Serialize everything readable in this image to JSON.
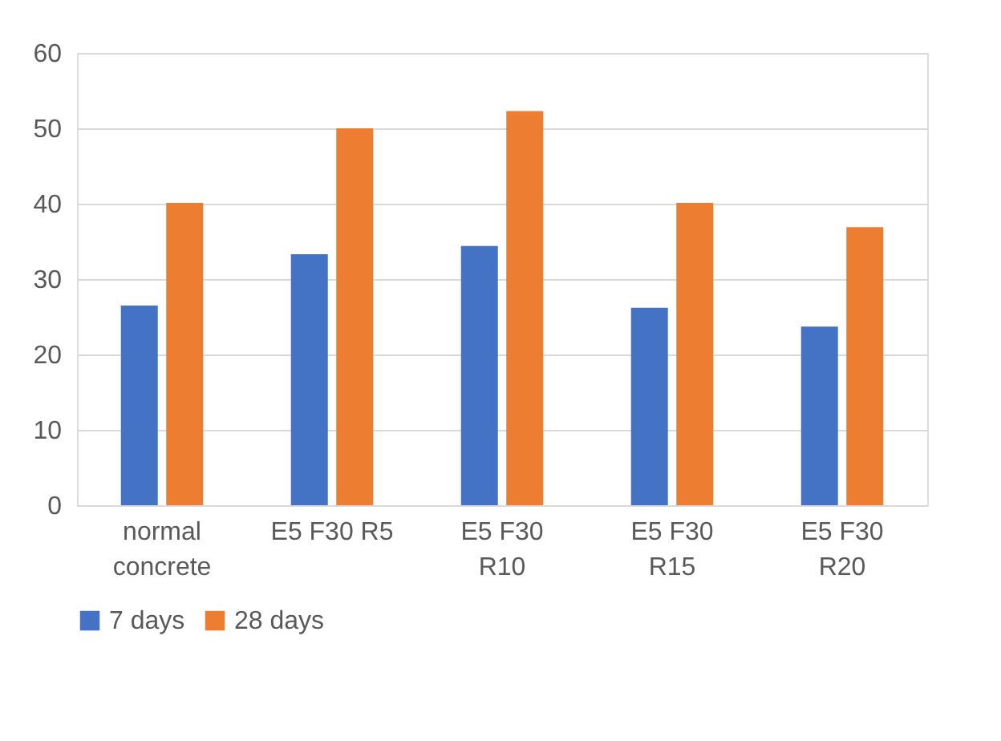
{
  "chart_data": {
    "type": "bar",
    "categories": [
      "normal concrete",
      "E5 F30 R5",
      "E5 F30 R10",
      "E5 F30 R15",
      "E5 F30 R20"
    ],
    "series": [
      {
        "name": "7 days",
        "color": "#4472c4",
        "values": [
          26.5,
          33.3,
          34.4,
          26.2,
          23.7
        ]
      },
      {
        "name": "28 days",
        "color": "#ed7d31",
        "values": [
          40.1,
          50.0,
          52.3,
          40.1,
          36.9
        ]
      }
    ],
    "ylim": [
      0,
      60
    ],
    "yticks": [
      0,
      10,
      20,
      30,
      40,
      50,
      60
    ],
    "grid": "y",
    "legend": "bottom"
  }
}
